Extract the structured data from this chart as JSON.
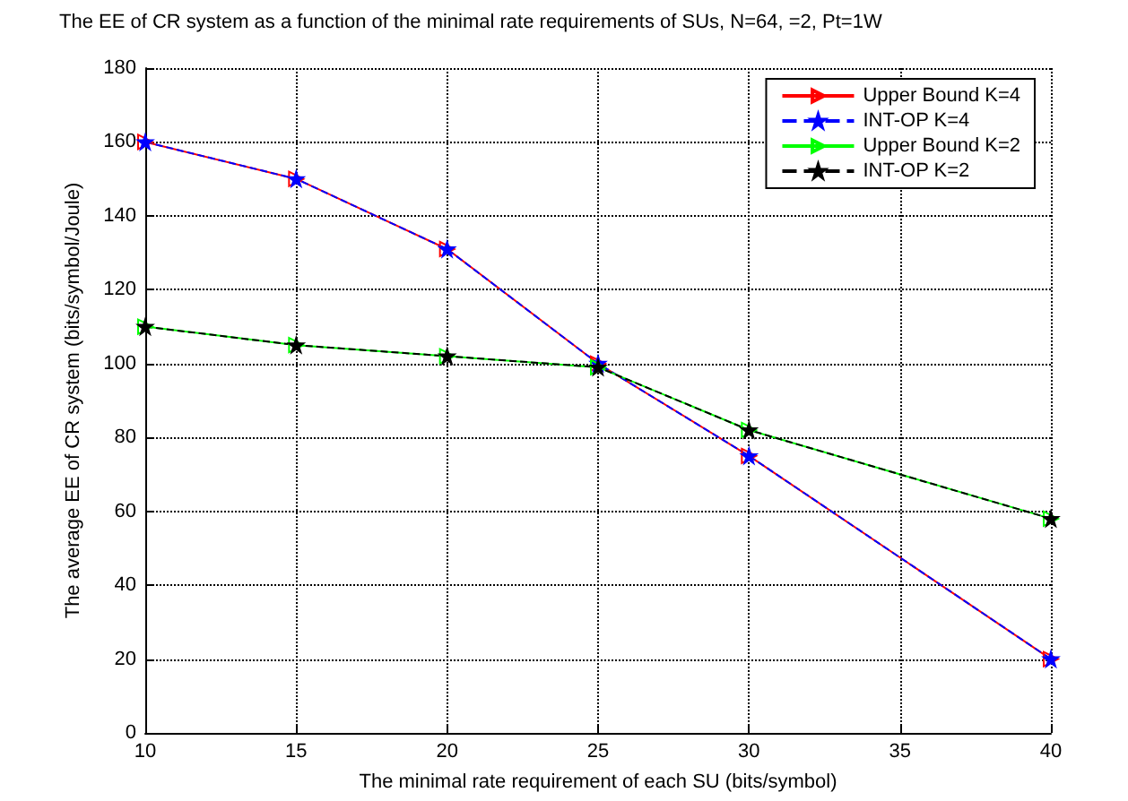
{
  "chart_data": {
    "type": "line",
    "title": "The EE of CR system as a function of the minimal rate requirements of SUs, N=64, =2, Pt=1W",
    "xlabel": "The minimal rate requirement of each SU (bits/symbol)",
    "ylabel": "The average EE of CR system (bits/symbol/Joule)",
    "x": [
      10,
      15,
      20,
      25,
      30,
      40
    ],
    "series": [
      {
        "name": "Upper Bound K=4",
        "color": "#ff0000",
        "marker": "triangle",
        "line_style": "solid",
        "values": [
          160,
          150,
          131,
          100,
          75,
          20
        ]
      },
      {
        "name": "INT-OP K=4",
        "color": "#0000ff",
        "marker": "star",
        "line_style": "dashed",
        "values": [
          160,
          150,
          131,
          100,
          75,
          20
        ]
      },
      {
        "name": "Upper Bound K=2",
        "color": "#00ff00",
        "marker": "triangle",
        "line_style": "solid",
        "values": [
          110,
          105,
          102,
          99,
          82,
          58
        ]
      },
      {
        "name": "INT-OP K=2",
        "color": "#000000",
        "marker": "star",
        "line_style": "dashed",
        "values": [
          110,
          105,
          102,
          99,
          82,
          58
        ]
      }
    ],
    "xlim": [
      10,
      40
    ],
    "xticks": [
      10,
      15,
      20,
      25,
      30,
      35,
      40
    ],
    "ylim": [
      0,
      180
    ],
    "yticks": [
      0,
      20,
      40,
      60,
      80,
      100,
      120,
      140,
      160,
      180
    ],
    "grid": true,
    "legend": "top right"
  }
}
